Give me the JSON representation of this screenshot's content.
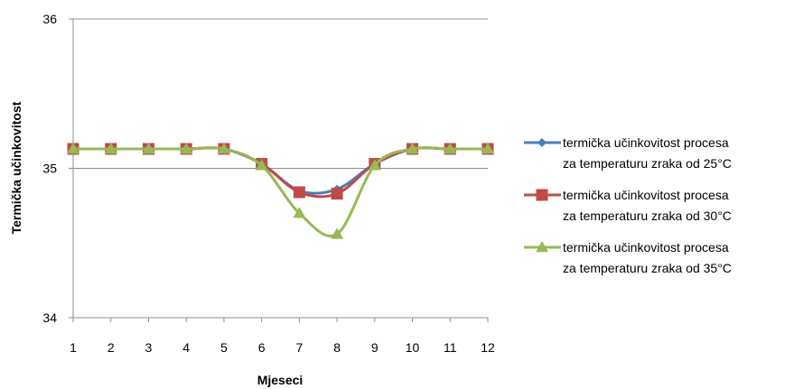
{
  "chart_data": {
    "type": "line",
    "title": "",
    "xlabel": "Mjeseci",
    "ylabel": "Termička učinkovitost",
    "x": [
      1,
      2,
      3,
      4,
      5,
      6,
      7,
      8,
      9,
      10,
      11,
      12
    ],
    "ylim": [
      34,
      36
    ],
    "yticks": [
      34,
      35,
      36
    ],
    "grid": "horizontal",
    "legend_position": "right",
    "smooth": true,
    "series": [
      {
        "name_line1": "termička učinkovitost procesa",
        "name_line2": "za temperaturu zraka od 25°C",
        "color": "#4a7ebb",
        "marker": "diamond",
        "values": [
          35.13,
          35.13,
          35.13,
          35.13,
          35.13,
          35.03,
          34.85,
          34.86,
          35.03,
          35.13,
          35.13,
          35.13
        ]
      },
      {
        "name_line1": "termička učinkovitost procesa",
        "name_line2": "za temperaturu zraka od 30°C",
        "color": "#be4b48",
        "marker": "square",
        "values": [
          35.13,
          35.13,
          35.13,
          35.13,
          35.13,
          35.03,
          34.84,
          34.83,
          35.03,
          35.13,
          35.13,
          35.13
        ]
      },
      {
        "name_line1": "termička učinkovitost procesa",
        "name_line2": "za temperaturu zraka od 35°C",
        "color": "#98b954",
        "marker": "triangle",
        "values": [
          35.13,
          35.13,
          35.13,
          35.13,
          35.13,
          35.02,
          34.7,
          34.56,
          35.02,
          35.13,
          35.13,
          35.13
        ]
      }
    ]
  }
}
